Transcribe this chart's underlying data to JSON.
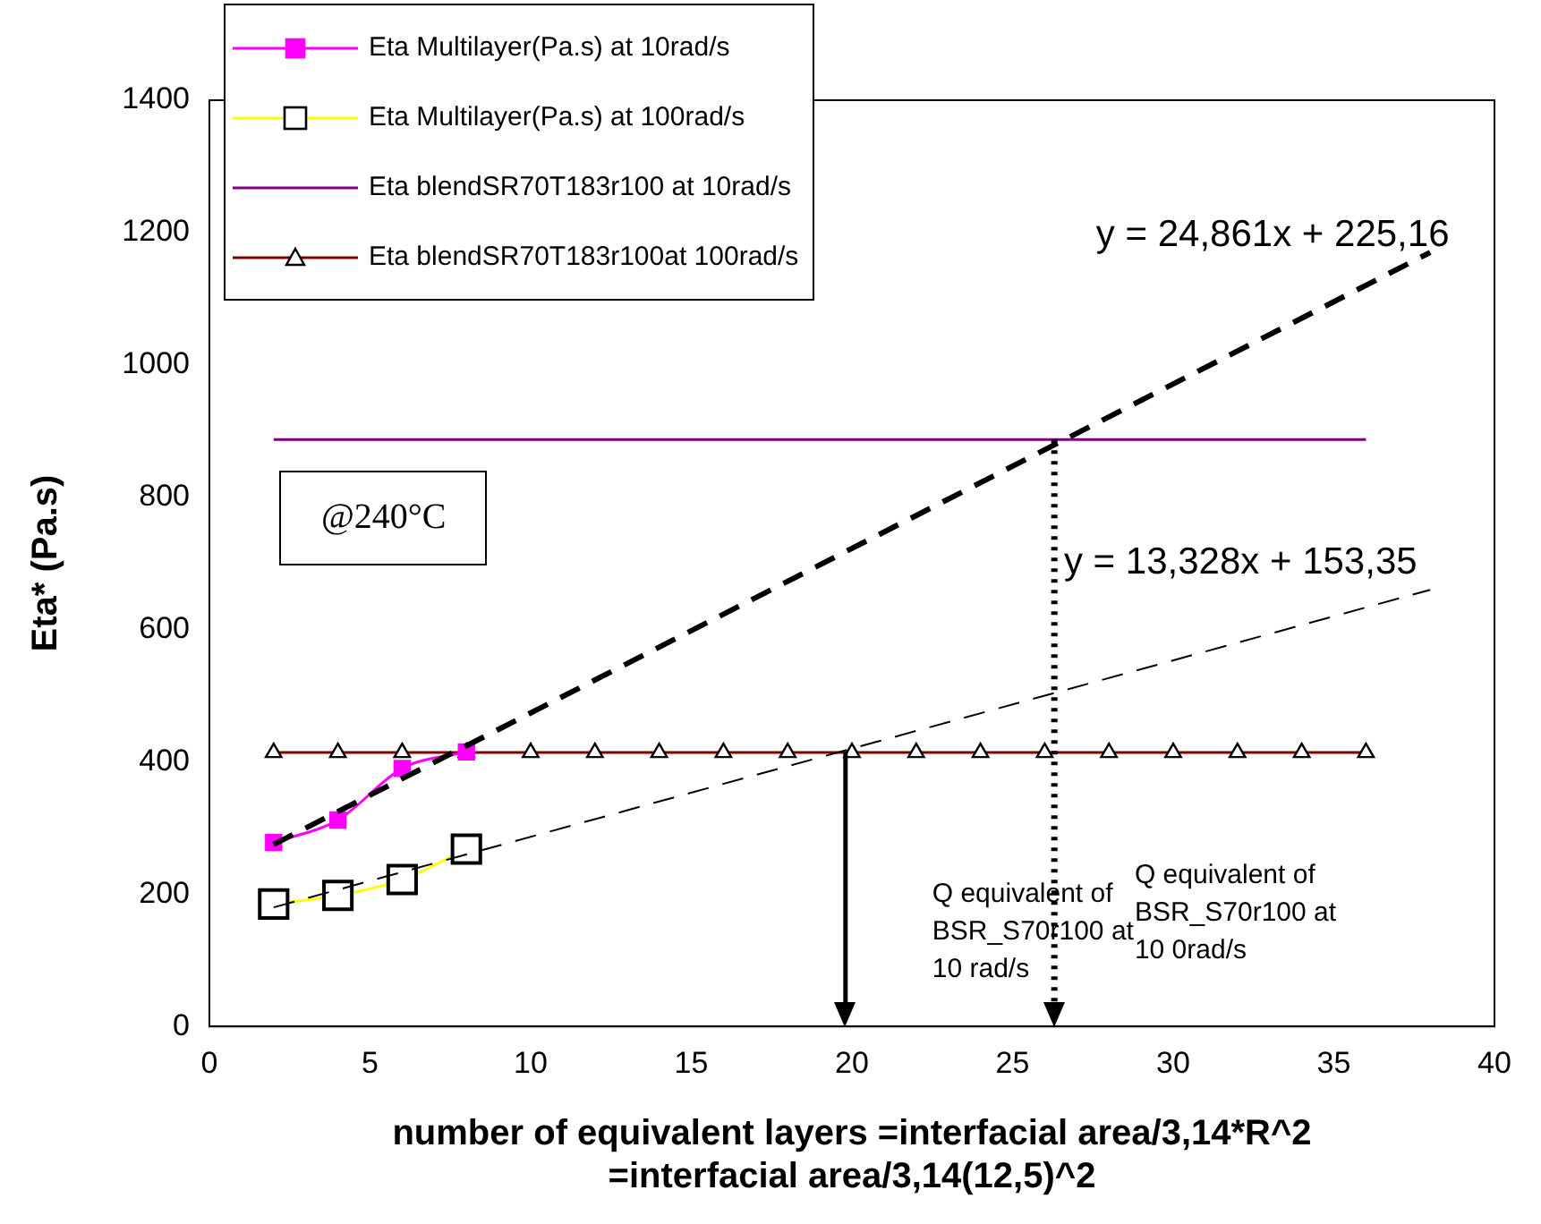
{
  "chart_data": {
    "type": "line",
    "xlabel": "number of equivalent layers =interfacial area/3,14*R^2\n=interfacial area/3,14(12,5)^2",
    "ylabel": "Eta* (Pa.s)",
    "xlim": [
      0,
      40
    ],
    "xticks": [
      0,
      5,
      10,
      15,
      20,
      25,
      30,
      35,
      40
    ],
    "ylim": [
      0,
      1400
    ],
    "yticks": [
      0,
      200,
      400,
      600,
      800,
      1000,
      1200,
      1400
    ],
    "grid": false,
    "legend": "top left",
    "series": [
      {
        "name": "Eta Multilayer(Pa.s) at 10rad/s",
        "color": "#ff00ff",
        "marker": "square",
        "x": [
          2,
          4,
          6,
          8
        ],
        "values": [
          278,
          312,
          390,
          415
        ]
      },
      {
        "name": "Eta Multilayer(Pa.s) at 100rad/s",
        "color": "#ffff00",
        "marker": "square",
        "x": [
          2,
          4,
          6,
          8
        ],
        "values": [
          185,
          198,
          222,
          268
        ]
      },
      {
        "name": "Eta blendSR70T183r100 at 10rad/s",
        "color": "#800080",
        "marker": "none",
        "x": [
          2,
          36
        ],
        "values": [
          887,
          887
        ]
      },
      {
        "name": "Eta blendSR70T183r100at 100rad/s",
        "color": "#800000",
        "marker": "triangle",
        "x": [
          2,
          4,
          6,
          8,
          10,
          12,
          14,
          16,
          18,
          20,
          22,
          24,
          26,
          28,
          30,
          32,
          34,
          36
        ],
        "values": [
          414,
          414,
          414,
          414,
          414,
          414,
          414,
          414,
          414,
          414,
          414,
          414,
          414,
          414,
          414,
          414,
          414,
          414
        ]
      },
      {
        "color": "#000000",
        "line_style": "dashed",
        "x": [
          2,
          38
        ],
        "values": [
          275,
          1170
        ]
      },
      {
        "color": "#000000",
        "line_style": "dashed",
        "x": [
          2,
          38
        ],
        "values": [
          180,
          660
        ]
      }
    ],
    "ref_lines": [
      {
        "axis": "x",
        "value": 19.8,
        "color": "#000000"
      },
      {
        "axis": "x",
        "value": 26.3,
        "color": "#000000",
        "line_style": "dotted"
      }
    ],
    "annotations": [
      "y = 24,861x + 225,16",
      "y = 13,328x + 153,35",
      "Q equivalent of\nBSR_S70r100 at\n10 rad/s",
      "Q equivalent of\nBSR_S70r100 at\n10 0rad/s",
      "@240°C"
    ]
  }
}
